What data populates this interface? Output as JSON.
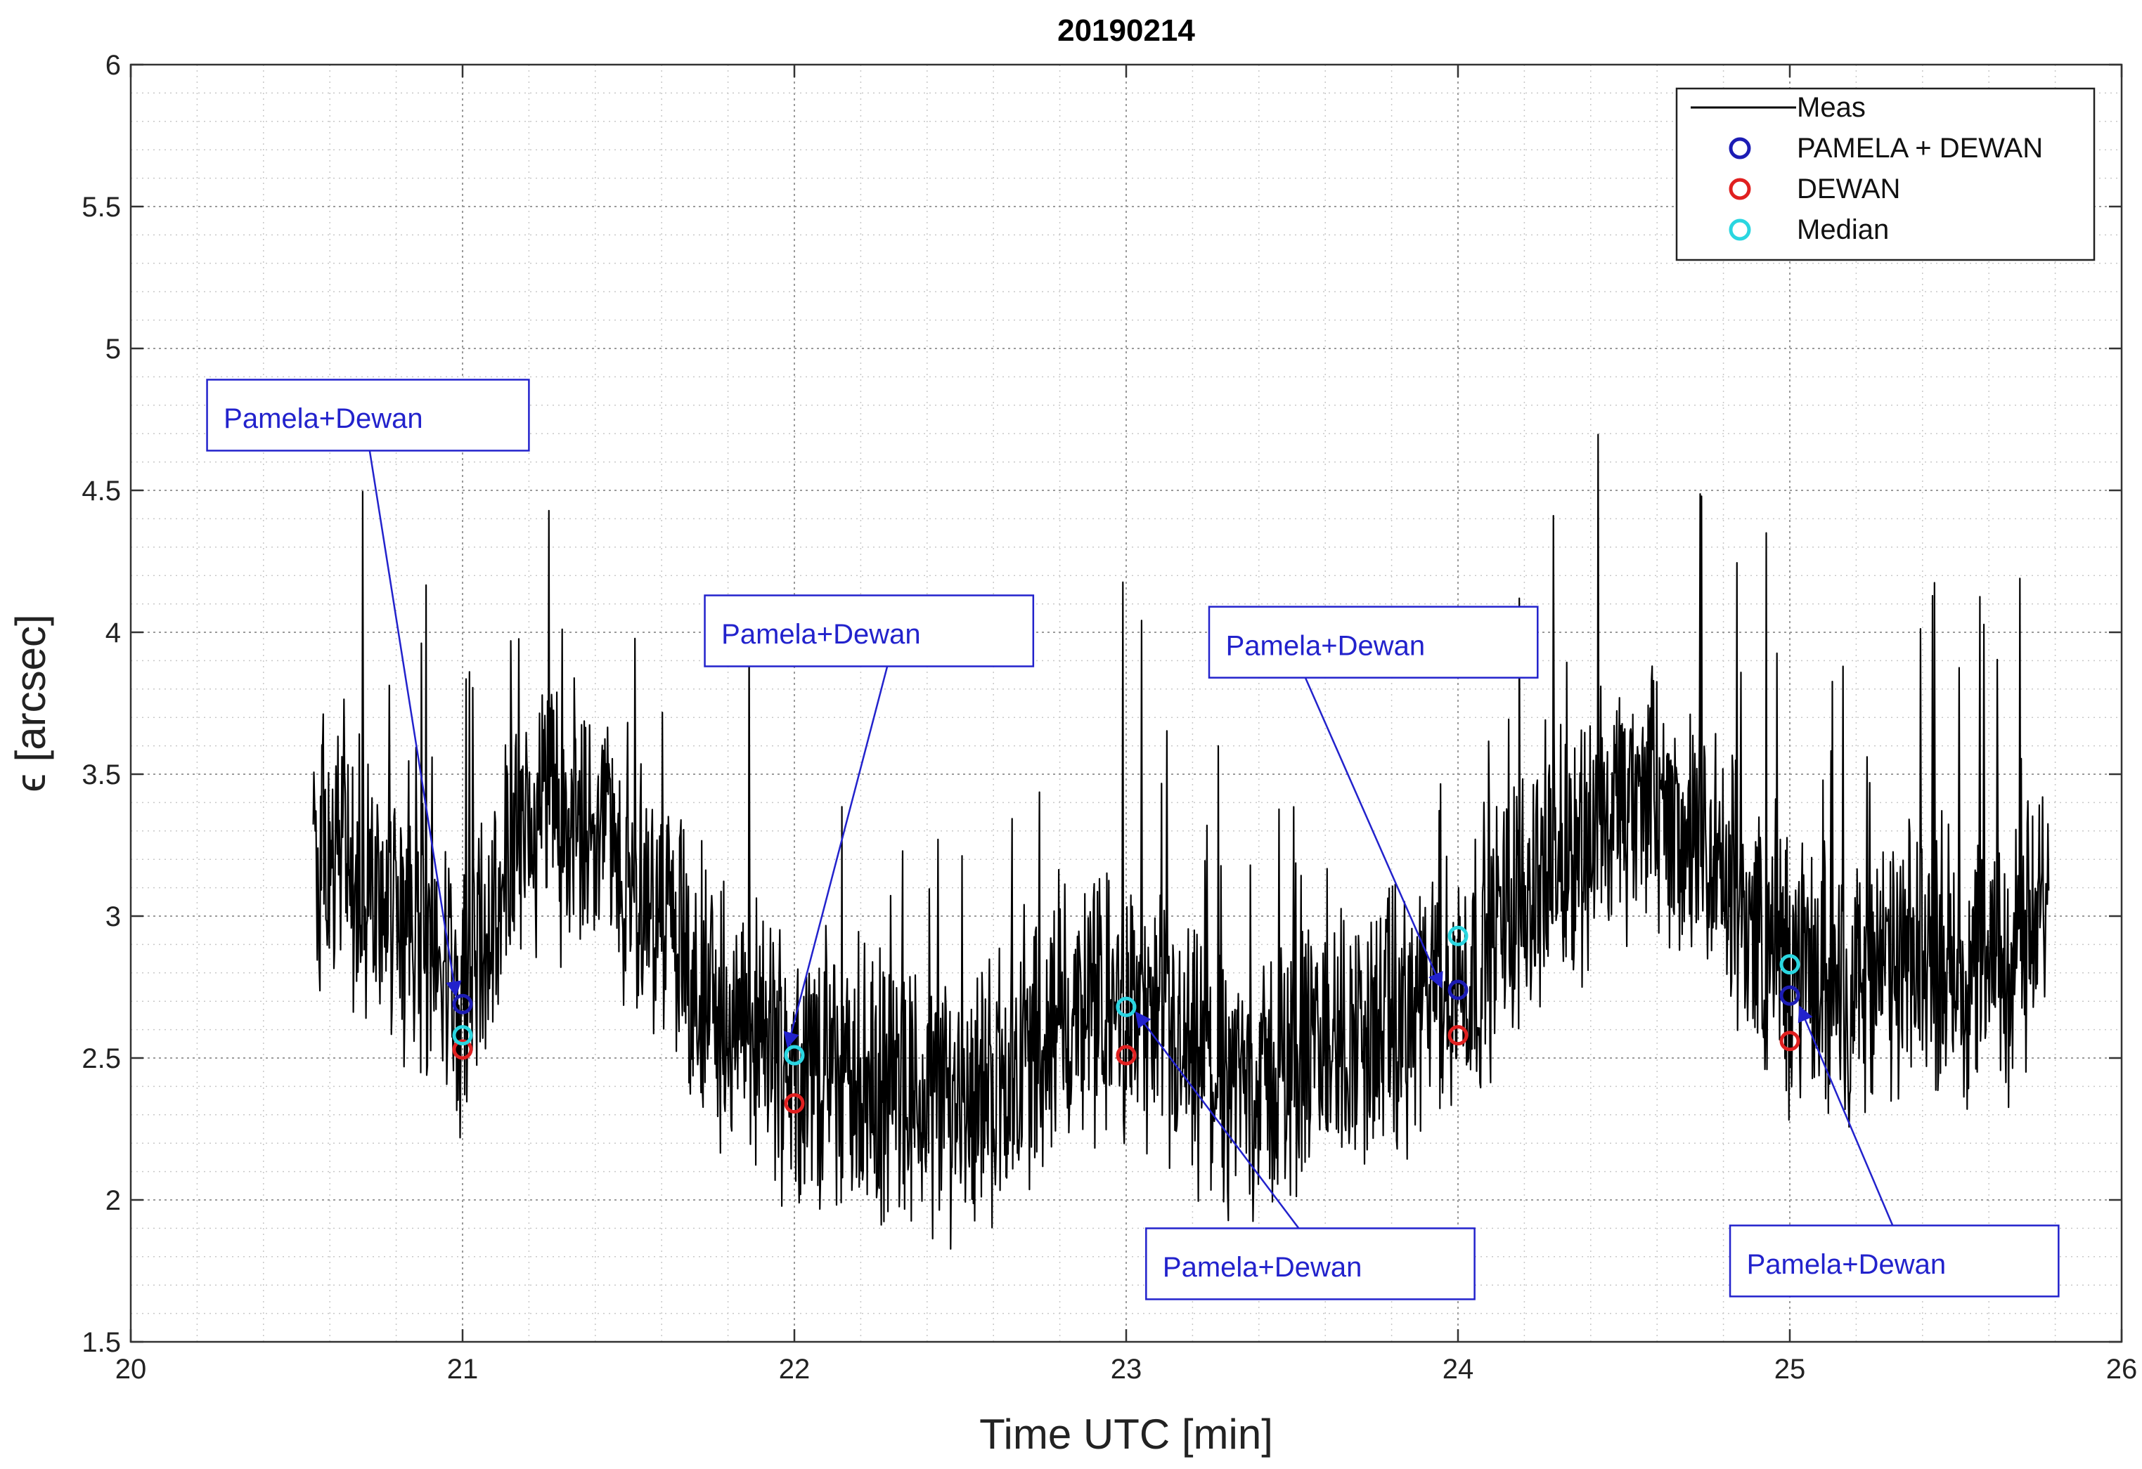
{
  "chart_data": {
    "type": "line",
    "title": "20190214",
    "xlabel": "Time UTC [min]",
    "ylabel": "ϵ [arcsec]",
    "xlim": [
      20,
      26
    ],
    "ylim": [
      1.5,
      6
    ],
    "xticks": [
      20,
      21,
      22,
      23,
      24,
      25,
      26
    ],
    "xtick_labels": [
      "20",
      "21",
      "22",
      "23",
      "24",
      "25",
      "26"
    ],
    "yticks": [
      1.5,
      2,
      2.5,
      3,
      3.5,
      4,
      4.5,
      5,
      5.5,
      6
    ],
    "ytick_labels": [
      "1.5",
      "2",
      "2.5",
      "3",
      "3.5",
      "4",
      "4.5",
      "5",
      "5.5",
      "6"
    ],
    "grid": "major and minor, dotted",
    "legend_position": "top-right",
    "meas_anchors": {
      "x": [
        20.55,
        20.75,
        21.0,
        21.2,
        21.4,
        21.6,
        21.8,
        22.0,
        22.2,
        22.4,
        22.6,
        22.8,
        23.0,
        23.2,
        23.4,
        23.6,
        23.8,
        24.0,
        24.2,
        24.4,
        24.6,
        24.8,
        25.0,
        25.2,
        25.4,
        25.6,
        25.78
      ],
      "y": [
        3.2,
        3.1,
        2.7,
        3.4,
        3.3,
        3.0,
        2.6,
        2.5,
        2.4,
        2.35,
        2.4,
        2.6,
        2.7,
        2.45,
        2.4,
        2.55,
        2.6,
        2.75,
        3.1,
        3.3,
        3.4,
        3.1,
        2.8,
        2.75,
        2.85,
        2.8,
        3.0
      ]
    },
    "series": [
      {
        "name": "Meas",
        "style": "line",
        "color": "#000000",
        "note": "dense noisy seeing measurements around the anchor trend"
      },
      {
        "name": "PAMELA + DEWAN",
        "style": "circle",
        "color": "#1c1cb4",
        "x": [
          21,
          22,
          23,
          24,
          25
        ],
        "y": [
          2.69,
          2.51,
          2.68,
          2.74,
          2.72
        ]
      },
      {
        "name": "DEWAN",
        "style": "circle",
        "color": "#e02020",
        "x": [
          21,
          22,
          23,
          24,
          25
        ],
        "y": [
          2.53,
          2.34,
          2.51,
          2.58,
          2.56
        ]
      },
      {
        "name": "Median",
        "style": "circle",
        "color": "#2ad6e0",
        "x": [
          21,
          22,
          23,
          24,
          25
        ],
        "y": [
          2.58,
          2.51,
          2.68,
          2.93,
          2.83
        ]
      }
    ],
    "annotations": [
      {
        "text": "Pamela+Dewan",
        "box_x": [
          20.23,
          21.2
        ],
        "box_y": [
          4.64,
          4.89
        ],
        "text_x": 20.28,
        "text_y": 4.72,
        "arrow_from": [
          20.72,
          4.64
        ],
        "arrow_to": [
          20.98,
          2.72
        ]
      },
      {
        "text": "Pamela+Dewan",
        "box_x": [
          21.73,
          22.72
        ],
        "box_y": [
          3.88,
          4.13
        ],
        "text_x": 21.78,
        "text_y": 3.96,
        "arrow_from": [
          22.28,
          3.88
        ],
        "arrow_to": [
          21.98,
          2.54
        ]
      },
      {
        "text": "Pamela+Dewan",
        "box_x": [
          23.25,
          24.24
        ],
        "box_y": [
          3.84,
          4.09
        ],
        "text_x": 23.3,
        "text_y": 3.92,
        "arrow_from": [
          23.54,
          3.84
        ],
        "arrow_to": [
          23.95,
          2.75
        ]
      },
      {
        "text": "Pamela+Dewan",
        "box_x": [
          23.06,
          24.05
        ],
        "box_y": [
          1.65,
          1.9
        ],
        "text_x": 23.11,
        "text_y": 1.73,
        "arrow_from": [
          23.52,
          1.9
        ],
        "arrow_to": [
          23.03,
          2.66
        ]
      },
      {
        "text": "Pamela+Dewan",
        "box_x": [
          24.82,
          25.81
        ],
        "box_y": [
          1.66,
          1.91
        ],
        "text_x": 24.87,
        "text_y": 1.74,
        "arrow_from": [
          25.31,
          1.91
        ],
        "arrow_to": [
          25.03,
          2.68
        ]
      }
    ]
  }
}
